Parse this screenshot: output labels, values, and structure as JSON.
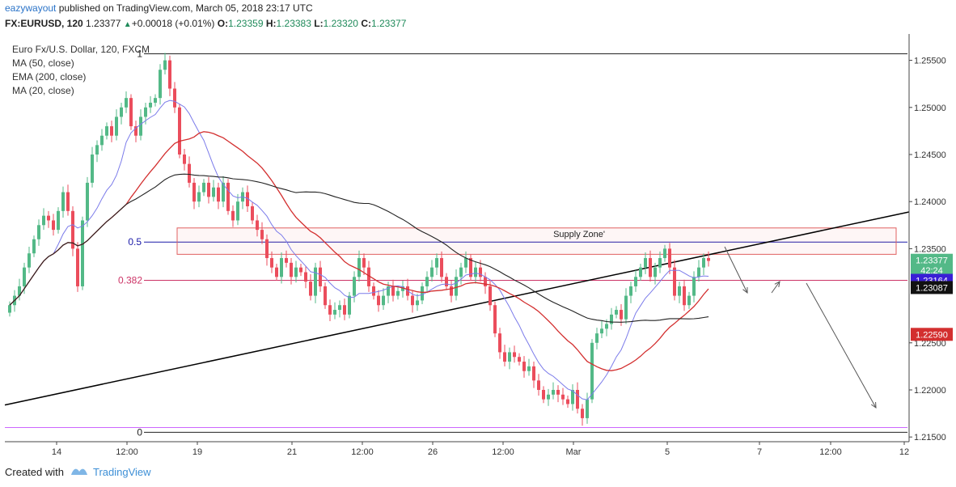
{
  "header": {
    "user": "eazywayout",
    "published": "published on TradingView.com, March 05, 2018 23:17 UTC",
    "symbol_line": "FX:EURUSD, 120",
    "last": "1.23377",
    "change": "+0.00018 (+0.01%)",
    "o_label": "O:",
    "o_value": "1.23359",
    "h_label": "H:",
    "h_value": "1.23383",
    "l_label": "L:",
    "l_value": "1.23320",
    "c_label": "C:",
    "c_value": "1.23377"
  },
  "legend": {
    "title": "Euro Fx/U.S. Dollar, 120, FXCM",
    "ma50": "MA (50, close)",
    "ema200": "EMA (200, close)",
    "ma20": "MA (20, close)"
  },
  "footer": {
    "created_with": "Created with",
    "brand": "TradingView"
  },
  "colors": {
    "up": "#53b987",
    "down": "#eb4d5c",
    "ma50": "#222222",
    "ema200": "#d32f2f",
    "ma20": "#7b7bea",
    "zone": "#e06060",
    "fib_mid": "#1a1aa8",
    "fib_382": "#cc3366",
    "violet": "#cc66ff"
  },
  "chart_data": {
    "type": "candlestick",
    "symbol": "FX:EURUSD",
    "interval": "120",
    "ylim": [
      1.2145,
      1.2578
    ],
    "y_ticks": [
      "1.25500",
      "1.25000",
      "1.24500",
      "1.24000",
      "1.23500",
      "1.22500",
      "1.22000",
      "1.21500"
    ],
    "x_ticks": [
      "14",
      "12:00",
      "19",
      "21",
      "12:00",
      "26",
      "12:00",
      "Mar",
      "5",
      "7",
      "12:00",
      "12"
    ],
    "price_labels": [
      {
        "text": "1.23377",
        "value": 1.23377,
        "color": "#53b987"
      },
      {
        "text": "42:24",
        "value": 1.2327,
        "color": "#53b987"
      },
      {
        "text": "1.23164",
        "value": 1.23164,
        "color": "#3a1fd6"
      },
      {
        "text": "1.23087",
        "value": 1.23087,
        "color": "#111111"
      },
      {
        "text": "1.22590",
        "value": 1.2259,
        "color": "#d32f2f"
      }
    ],
    "fib_levels": [
      {
        "label": "1",
        "value": 1.2557
      },
      {
        "label": "0.5",
        "value": 1.2357
      },
      {
        "label": "0.382",
        "value": 1.23164
      },
      {
        "label": "0",
        "value": 1.2155
      }
    ],
    "supply_zone": {
      "label": "Supply Zone'",
      "top": 1.2372,
      "bottom": 1.2344
    },
    "ohlc_closes": [
      1.229,
      1.23,
      1.231,
      1.233,
      1.2345,
      1.236,
      1.2375,
      1.2385,
      1.238,
      1.237,
      1.239,
      1.241,
      1.239,
      1.235,
      1.231,
      1.238,
      1.242,
      1.245,
      1.246,
      1.247,
      1.248,
      1.247,
      1.249,
      1.25,
      1.251,
      1.248,
      1.247,
      1.249,
      1.25,
      1.2505,
      1.251,
      1.254,
      1.255,
      1.252,
      1.25,
      1.245,
      1.244,
      1.242,
      1.24,
      1.241,
      1.242,
      1.2405,
      1.2415,
      1.24,
      1.242,
      1.239,
      1.238,
      1.24,
      1.241,
      1.2395,
      1.238,
      1.237,
      1.236,
      1.234,
      1.233,
      1.232,
      1.234,
      1.2335,
      1.232,
      1.233,
      1.2325,
      1.2315,
      1.23,
      1.233,
      1.231,
      1.229,
      1.228,
      1.2285,
      1.229,
      1.228,
      1.23,
      1.232,
      1.234,
      1.233,
      1.231,
      1.23,
      1.229,
      1.23,
      1.231,
      1.23,
      1.2305,
      1.231,
      1.23,
      1.229,
      1.2295,
      1.231,
      1.232,
      1.233,
      1.234,
      1.232,
      1.231,
      1.23,
      1.232,
      1.233,
      1.234,
      1.232,
      1.233,
      1.232,
      1.231,
      1.229,
      1.226,
      1.224,
      1.223,
      1.224,
      1.2235,
      1.223,
      1.222,
      1.2225,
      1.221,
      1.22,
      1.219,
      1.2195,
      1.22,
      1.2195,
      1.219,
      1.2185,
      1.22,
      1.218,
      1.217,
      1.219,
      1.225,
      1.226,
      1.2265,
      1.227,
      1.228,
      1.2285,
      1.2275,
      1.23,
      1.231,
      1.232,
      1.233,
      1.234,
      1.232,
      1.233,
      1.234,
      1.235,
      1.233,
      1.23,
      1.231,
      1.229,
      1.23,
      1.232,
      1.233,
      1.234,
      1.2337
    ]
  }
}
